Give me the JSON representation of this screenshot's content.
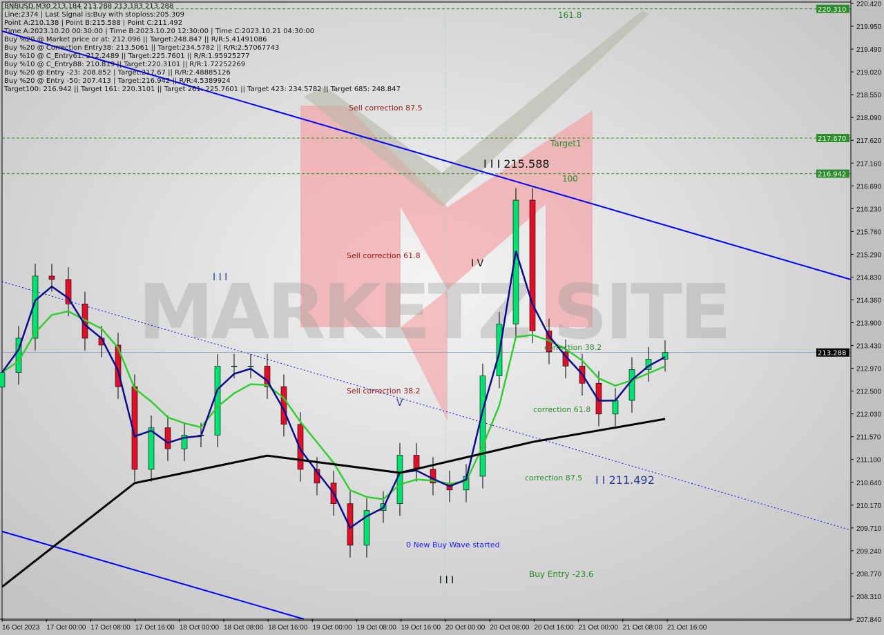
{
  "header": {
    "symbol_line": "BNBUSD,M30  213.184 213.288 213.183 213.288",
    "lines": [
      "Line:2374 | Last Signal is:Buy with stoploss:205.309",
      "Point A:210.138 | Point B:215.588 | Point C:211.492",
      "Time A:2023.10.20 00:30:00 | Time B:2023.10.20 12:30:00 | Time C:2023.10.21 04:30:00",
      "Buy %20 @ Market price or at: 212.096 || Target:248.847 || R/R:5.41491086",
      "Buy %20 @ Correction Entry38: 213.5061 || Target:234.5782 || R/R:2.57067743",
      "Buy %10 @ C_Entry61: 212.2489 || Target:225.7601 || R/R:1.95925277",
      "Buy %10 @ C_Entry88: 210.819 || Target:220.3101 || R/R:1.72252269",
      "Buy %20 @ Entry -23: 208.852 | Target:217.67 || R/R:2.48885126",
      "Buy %20 @ Entry -50: 207.413 | Target:216.942 || R/R:4.5389924",
      "Target100: 216.942 || Target 161: 220.3101 || Target 261: 225.7601 || Target 423: 234.5782 || Target 685: 248.847"
    ]
  },
  "chart_data": {
    "type": "candlestick",
    "symbol": "BNBUSD",
    "timeframe": "M30",
    "ylim": [
      207.84,
      220.42
    ],
    "y_ticks": [
      "220.420",
      "219.950",
      "219.490",
      "219.020",
      "218.550",
      "218.090",
      "217.620",
      "217.160",
      "216.690",
      "216.230",
      "215.760",
      "215.290",
      "214.830",
      "214.360",
      "213.900",
      "213.430",
      "212.970",
      "212.500",
      "212.030",
      "211.570",
      "211.100",
      "210.640",
      "210.170",
      "209.710",
      "209.240",
      "208.770",
      "208.310",
      "207.840"
    ],
    "x_ticks": [
      "16 Oct 2023",
      "17 Oct 00:00",
      "17 Oct 08:00",
      "17 Oct 16:00",
      "18 Oct 00:00",
      "18 Oct 08:00",
      "18 Oct 16:00",
      "19 Oct 00:00",
      "19 Oct 08:00",
      "19 Oct 16:00",
      "20 Oct 00:00",
      "20 Oct 08:00",
      "20 Oct 16:00",
      "21 Oct 00:00",
      "21 Oct 08:00",
      "21 Oct 16:00"
    ],
    "start": "2023-10-16 16:00",
    "interval_hours": 3,
    "closes": [
      212.88,
      213.58,
      214.85,
      214.78,
      214.28,
      213.58,
      213.44,
      212.59,
      210.9,
      211.75,
      211.32,
      211.6,
      211.6,
      213.01,
      213.01,
      213.01,
      212.59,
      211.82,
      210.9,
      210.62,
      210.2,
      209.35,
      210.06,
      210.2,
      211.19,
      210.9,
      210.62,
      210.48,
      210.76,
      212.81,
      213.87,
      216.4,
      213.73,
      213.3,
      213.01,
      212.66,
      212.03,
      212.31,
      212.94,
      213.15,
      213.288
    ],
    "slow_ma": [
      {
        "h": 0,
        "v": 208.5
      },
      {
        "h": 24,
        "v": 210.62
      },
      {
        "h": 48,
        "v": 211.18
      },
      {
        "h": 72,
        "v": 210.83
      },
      {
        "h": 96,
        "v": 211.46
      },
      {
        "h": 120,
        "v": 211.93
      }
    ],
    "current_price": "213.288",
    "levels": [
      {
        "price": 220.31,
        "label": "220.310",
        "name": "161.8"
      },
      {
        "price": 217.67,
        "label": "217.670",
        "name": "Target1"
      },
      {
        "price": 216.942,
        "label": "216.942",
        "name": "100"
      }
    ],
    "annotations": {
      "point_b": "I I I 215.588",
      "point_c": "I I 211.492",
      "wave_iv": "I V",
      "wave_iii": "I I I",
      "wave_iii_bottom": "I I I",
      "wave_v": "V",
      "sell_875": "Sell correction 87.5",
      "sell_618": "Sell correction 61.8",
      "sell_382": "Sell correction 38.2",
      "corr_382": "correction 38.2",
      "corr_618": "correction 61.8",
      "corr_875": "correction 87.5",
      "new_wave": "0 New Buy Wave started",
      "buy_entry": "Buy Entry -23.6"
    },
    "colors": {
      "bull": "#00e070",
      "bear": "#e0102a",
      "fast_ma": "#0a0a8a",
      "mid_ma": "#33cc33",
      "slow_ma": "#000000",
      "trend": "#0000ff",
      "level": "#2a8a2a",
      "sell_zone": "#f4a0a0"
    },
    "watermark": "MARKETZ SITE"
  }
}
